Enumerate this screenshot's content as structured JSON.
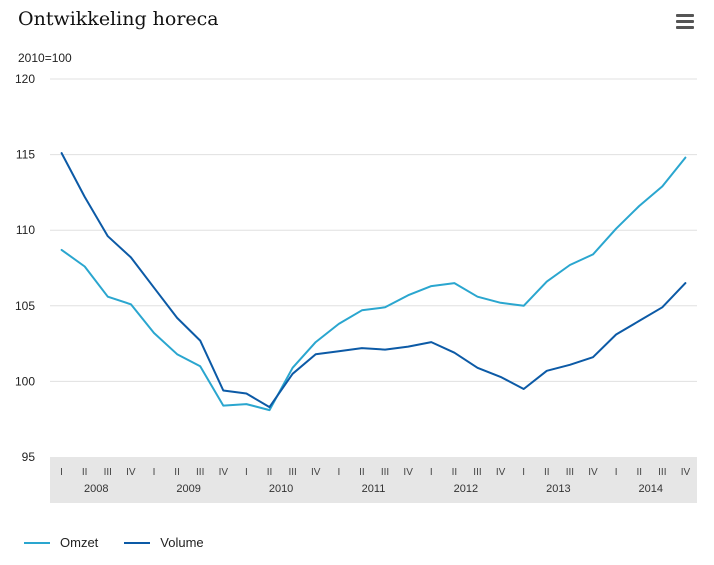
{
  "title": "Ontwikkeling horeca",
  "menu_icon": "hamburger-menu-icon",
  "chart_data": {
    "type": "line",
    "title": "Ontwikkeling horeca",
    "ylabel": "2010=100",
    "ylim": [
      95,
      120
    ],
    "yticks": [
      "95",
      "100",
      "105",
      "110",
      "115",
      "120"
    ],
    "grid": true,
    "legend_position": "bottom-left",
    "quarters": [
      "I",
      "II",
      "III",
      "IV",
      "I",
      "II",
      "III",
      "IV",
      "I",
      "II",
      "III",
      "IV",
      "I",
      "II",
      "III",
      "IV",
      "I",
      "II",
      "III",
      "IV",
      "I",
      "II",
      "III",
      "IV",
      "I",
      "II",
      "III",
      "IV"
    ],
    "years": [
      "2008",
      "2009",
      "2010",
      "2011",
      "2012",
      "2013",
      "2014"
    ],
    "series": [
      {
        "name": "Omzet",
        "color": "#2aa6cf",
        "values": [
          108.7,
          107.6,
          105.6,
          105.1,
          103.2,
          101.8,
          101.0,
          98.4,
          98.5,
          98.1,
          100.9,
          102.6,
          103.8,
          104.7,
          104.9,
          105.7,
          106.3,
          106.5,
          105.6,
          105.2,
          105.0,
          106.6,
          107.7,
          108.4,
          110.1,
          111.6,
          112.9,
          114.8
        ]
      },
      {
        "name": "Volume",
        "color": "#0c5aa6",
        "values": [
          115.1,
          112.2,
          109.6,
          108.2,
          106.2,
          104.2,
          102.7,
          99.4,
          99.2,
          98.3,
          100.5,
          101.8,
          102.0,
          102.2,
          102.1,
          102.3,
          102.6,
          101.9,
          100.9,
          100.3,
          99.5,
          100.7,
          101.1,
          101.6,
          103.1,
          104.0,
          104.9,
          106.5
        ]
      }
    ]
  }
}
